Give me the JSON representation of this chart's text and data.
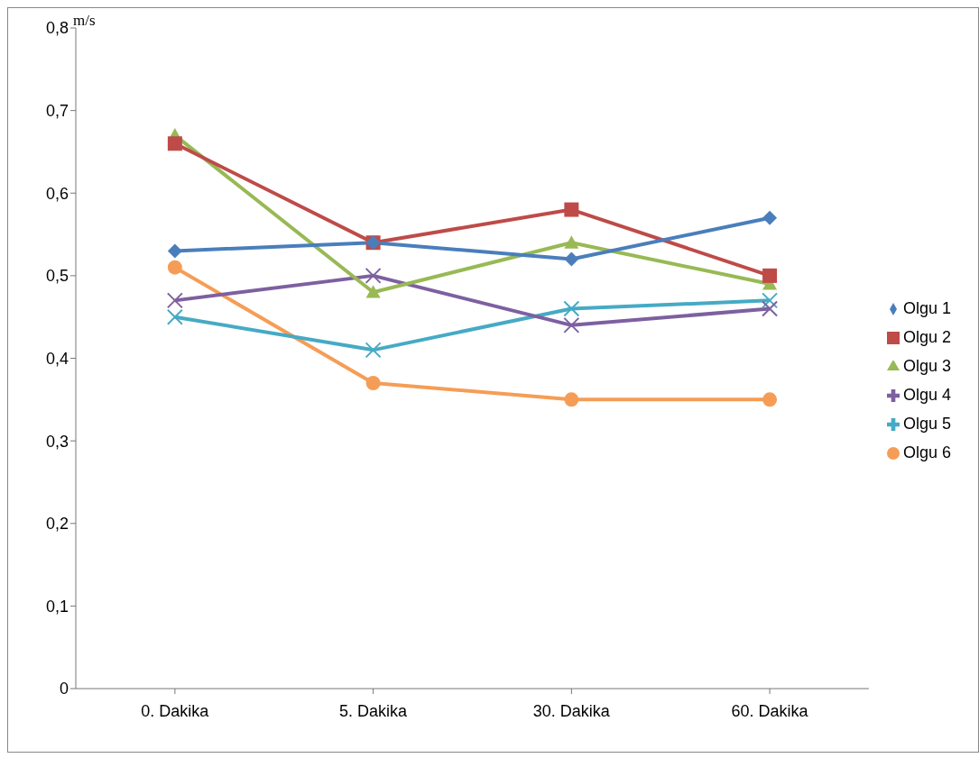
{
  "chart_data": {
    "type": "line",
    "ylabel": "m/s",
    "categories": [
      "0. Dakika",
      "5. Dakika",
      "30. Dakika",
      "60. Dakika"
    ],
    "series": [
      {
        "name": "Olgu 1",
        "color": "#4a7ebb",
        "marker": "diamond",
        "values": [
          0.53,
          0.54,
          0.52,
          0.57
        ]
      },
      {
        "name": "Olgu 2",
        "color": "#be4b48",
        "marker": "square",
        "values": [
          0.66,
          0.54,
          0.58,
          0.5
        ]
      },
      {
        "name": "Olgu 3",
        "color": "#98b954",
        "marker": "triangle",
        "values": [
          0.67,
          0.48,
          0.54,
          0.49
        ]
      },
      {
        "name": "Olgu 4",
        "color": "#7d60a0",
        "marker": "cross",
        "values": [
          0.47,
          0.5,
          0.44,
          0.46
        ]
      },
      {
        "name": "Olgu 5",
        "color": "#46aac5",
        "marker": "cross",
        "values": [
          0.45,
          0.41,
          0.46,
          0.47
        ]
      },
      {
        "name": "Olgu 6",
        "color": "#f59d56",
        "marker": "circle",
        "values": [
          0.51,
          0.37,
          0.35,
          0.35
        ]
      }
    ],
    "ylim": [
      0,
      0.8
    ],
    "yticks": [
      0,
      {
        "value": 0.1,
        "label": "0,1"
      },
      {
        "value": 0.2,
        "label": "0,2"
      },
      {
        "value": 0.3,
        "label": "0,3"
      },
      {
        "value": 0.4,
        "label": "0,4"
      },
      {
        "value": 0.5,
        "label": "0,5"
      },
      {
        "value": 0.6,
        "label": "0,6"
      },
      {
        "value": 0.7,
        "label": "0,7"
      },
      {
        "value": 0.8,
        "label": "0,8"
      }
    ],
    "grid": false,
    "legend": "right",
    "line_style": "solid"
  }
}
